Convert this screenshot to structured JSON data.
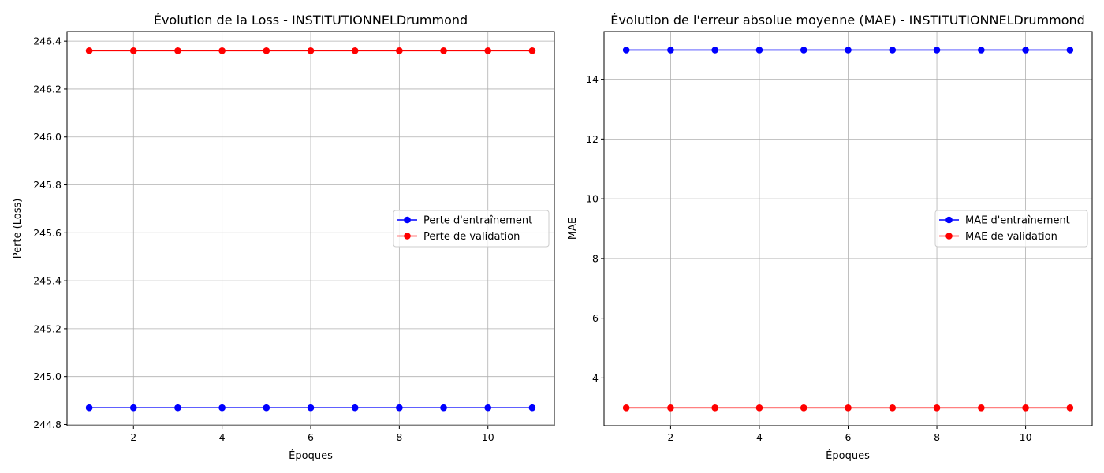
{
  "colors": {
    "train": "#0000ff",
    "val": "#ff0000",
    "grid": "#b0b0b0",
    "legend_border": "#cccccc"
  },
  "chart_data": [
    {
      "type": "line",
      "title": "Évolution de la Loss - INSTITUTIONNELDrummond",
      "xlabel": "Époques",
      "ylabel": "Perte (Loss)",
      "xlim": [
        0.5,
        11.5
      ],
      "ylim": [
        244.795,
        246.44
      ],
      "xticks": [
        2,
        4,
        6,
        8,
        10
      ],
      "yticks": [
        244.8,
        245.0,
        245.2,
        245.4,
        245.6,
        245.8,
        246.0,
        246.2,
        246.4
      ],
      "ytick_decimals": 1,
      "grid": true,
      "legend_position": "center-right",
      "x": [
        1,
        2,
        3,
        4,
        5,
        6,
        7,
        8,
        9,
        10,
        11
      ],
      "series": [
        {
          "name": "Perte d'entraînement",
          "color": "#0000ff",
          "marker": "circle",
          "values": [
            244.87,
            244.87,
            244.87,
            244.87,
            244.87,
            244.87,
            244.87,
            244.87,
            244.87,
            244.87,
            244.87
          ]
        },
        {
          "name": "Perte de validation",
          "color": "#ff0000",
          "marker": "circle",
          "values": [
            246.36,
            246.36,
            246.36,
            246.36,
            246.36,
            246.36,
            246.36,
            246.36,
            246.36,
            246.36,
            246.36
          ]
        }
      ]
    },
    {
      "type": "line",
      "title": "Évolution de l'erreur absolue moyenne (MAE) - INSTITUTIONNELDrummond",
      "xlabel": "Époques",
      "ylabel": "MAE",
      "xlim": [
        0.5,
        11.5
      ],
      "ylim": [
        2.4,
        15.6
      ],
      "xticks": [
        2,
        4,
        6,
        8,
        10
      ],
      "yticks": [
        4,
        6,
        8,
        10,
        12,
        14
      ],
      "ytick_decimals": 0,
      "grid": true,
      "legend_position": "center-right",
      "x": [
        1,
        2,
        3,
        4,
        5,
        6,
        7,
        8,
        9,
        10,
        11
      ],
      "series": [
        {
          "name": "MAE d'entraînement",
          "color": "#0000ff",
          "marker": "circle",
          "values": [
            14.98,
            14.98,
            14.98,
            14.98,
            14.98,
            14.98,
            14.98,
            14.98,
            14.98,
            14.98,
            14.98
          ]
        },
        {
          "name": "MAE de validation",
          "color": "#ff0000",
          "marker": "circle",
          "values": [
            3.0,
            3.0,
            3.0,
            3.0,
            3.0,
            3.0,
            3.0,
            3.0,
            3.0,
            3.0,
            3.0
          ]
        }
      ]
    }
  ]
}
